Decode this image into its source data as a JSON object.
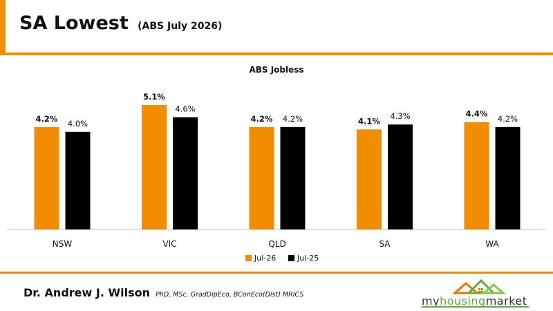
{
  "header": {
    "title": "SA Lowest",
    "subtitle": "(ABS July 2026)"
  },
  "colors": {
    "accent": "#F28C00",
    "series_jul26": "#F28C00",
    "series_jul25": "#000000",
    "logo_green": "#5FAE3A"
  },
  "chart_data": {
    "type": "bar",
    "title": "ABS Jobless",
    "xlabel": "",
    "ylabel": "",
    "categories": [
      "NSW",
      "VIC",
      "QLD",
      "SA",
      "WA"
    ],
    "series": [
      {
        "name": "Jul-26",
        "values": [
          4.2,
          5.1,
          4.2,
          4.1,
          4.4
        ],
        "labels": [
          "4.2%",
          "5.1%",
          "4.2%",
          "4.1%",
          "4.4%"
        ]
      },
      {
        "name": "Jul-25",
        "values": [
          4.0,
          4.6,
          4.2,
          4.3,
          4.2
        ],
        "labels": [
          "4.0%",
          "4.6%",
          "4.2%",
          "4.3%",
          "4.2%"
        ]
      }
    ],
    "ylim": [
      0,
      5.1
    ],
    "grid": false,
    "legend_position": "bottom"
  },
  "footer": {
    "author_name": "Dr. Andrew J. Wilson",
    "author_credentials": "PhD, MSc, GradDipEco, BConEco(Dist) MRICS",
    "logo_text_a": "my",
    "logo_text_b": "housing",
    "logo_text_c": "market"
  }
}
